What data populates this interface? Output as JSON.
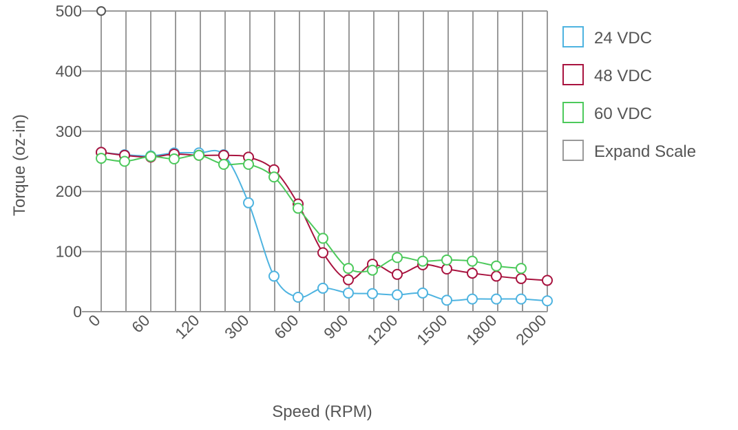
{
  "chart_data": {
    "type": "line",
    "xlabel": "Speed (RPM)",
    "ylabel": "Torque (oz-in)",
    "x_ticks": [
      "0",
      "60",
      "120",
      "300",
      "600",
      "900",
      "1200",
      "1500",
      "1800",
      "2000"
    ],
    "ylim": [
      0,
      500
    ],
    "y_ticks": [
      "0",
      "100",
      "200",
      "300",
      "400",
      "500"
    ],
    "grid": true,
    "legend_position": "right",
    "series": [
      {
        "name": "24 VDC",
        "color": "#4db3e0",
        "points": [
          [
            0,
            265
          ],
          [
            30,
            261
          ],
          [
            60,
            259
          ],
          [
            90,
            264
          ],
          [
            120,
            264
          ],
          [
            150,
            261
          ],
          [
            300,
            181
          ],
          [
            450,
            59
          ],
          [
            600,
            24
          ],
          [
            750,
            39
          ],
          [
            900,
            31
          ],
          [
            1050,
            30
          ],
          [
            1200,
            28
          ],
          [
            1350,
            31
          ],
          [
            1500,
            19
          ],
          [
            1650,
            21
          ],
          [
            1800,
            21
          ],
          [
            1950,
            21
          ],
          [
            2000,
            18
          ]
        ]
      },
      {
        "name": "48 VDC",
        "color": "#a8123e",
        "points": [
          [
            0,
            265
          ],
          [
            30,
            260
          ],
          [
            60,
            257
          ],
          [
            90,
            262
          ],
          [
            120,
            260
          ],
          [
            150,
            260
          ],
          [
            300,
            257
          ],
          [
            450,
            236
          ],
          [
            600,
            179
          ],
          [
            750,
            98
          ],
          [
            900,
            53
          ],
          [
            1050,
            79
          ],
          [
            1200,
            62
          ],
          [
            1350,
            78
          ],
          [
            1500,
            71
          ],
          [
            1650,
            64
          ],
          [
            1800,
            59
          ],
          [
            1950,
            55
          ],
          [
            2000,
            52
          ]
        ]
      },
      {
        "name": "60 VDC",
        "color": "#4cc95b",
        "points": [
          [
            0,
            255
          ],
          [
            30,
            250
          ],
          [
            60,
            258
          ],
          [
            90,
            254
          ],
          [
            120,
            260
          ],
          [
            150,
            245
          ],
          [
            300,
            245
          ],
          [
            450,
            224
          ],
          [
            600,
            172
          ],
          [
            750,
            122
          ],
          [
            900,
            72
          ],
          [
            1050,
            69
          ],
          [
            1200,
            90
          ],
          [
            1350,
            84
          ],
          [
            1500,
            86
          ],
          [
            1650,
            84
          ],
          [
            1800,
            76
          ],
          [
            1950,
            72
          ]
        ]
      }
    ],
    "extra_points": [
      {
        "x": 0,
        "y": 500,
        "color": "#555555"
      }
    ],
    "legend_toggle": {
      "label": "Expand Scale",
      "checked": false
    }
  }
}
